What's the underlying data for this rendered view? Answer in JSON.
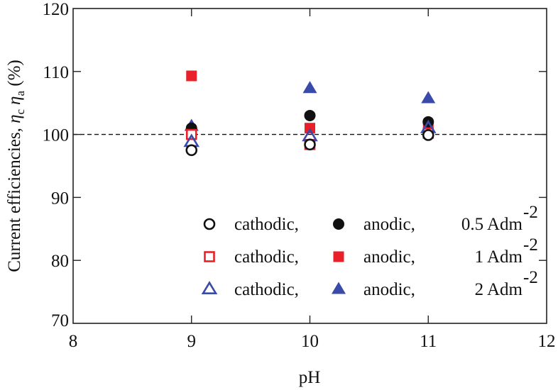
{
  "chart_data": {
    "type": "scatter",
    "title": "",
    "xlabel": "pH",
    "ylabel": "Current efficiencies, ηc ηa (%)",
    "ylabel_parts": {
      "prefix": "Current efficiencies, ",
      "eta": "η",
      "sub_c": "c",
      "sub_a": "a",
      "suffix": " (%)"
    },
    "xlim": [
      8,
      12
    ],
    "ylim": [
      70,
      120
    ],
    "xticks": [
      8,
      9,
      10,
      11,
      12
    ],
    "yticks": [
      70,
      80,
      90,
      100,
      110,
      120
    ],
    "reference_line": {
      "y": 100,
      "style": "dashed"
    },
    "grid": false,
    "legend_position": "bottom-right",
    "series": [
      {
        "name": "cathodic, 0.5 Adm-2",
        "marker": "circle",
        "filled": false,
        "color": "#111111",
        "x": [
          9,
          10,
          11
        ],
        "y": [
          97.5,
          98.4,
          99.9
        ]
      },
      {
        "name": "anodic, 0.5 Adm-2",
        "marker": "circle",
        "filled": true,
        "color": "#111111",
        "x": [
          9,
          10,
          11
        ],
        "y": [
          101.0,
          103.0,
          102.0
        ]
      },
      {
        "name": "cathodic, 1 Adm-2",
        "marker": "square",
        "filled": false,
        "color": "#e8202a",
        "x": [
          9,
          10,
          11
        ],
        "y": [
          100.0,
          98.4,
          100.2
        ]
      },
      {
        "name": "anodic, 1 Adm-2",
        "marker": "square",
        "filled": true,
        "color": "#e8202a",
        "x": [
          9,
          10,
          11
        ],
        "y": [
          109.3,
          101.0,
          101.2
        ]
      },
      {
        "name": "cathodic, 2 Adm-2",
        "marker": "triangle",
        "filled": false,
        "color": "#3a4aa8",
        "x": [
          9,
          10,
          11
        ],
        "y": [
          98.8,
          99.7,
          101.0
        ]
      },
      {
        "name": "anodic, 2 Adm-2",
        "marker": "triangle",
        "filled": true,
        "color": "#3a4aa8",
        "x": [
          9,
          10,
          11
        ],
        "y": [
          101.3,
          107.3,
          105.7
        ]
      }
    ],
    "legend": [
      {
        "cathodic_label": "cathodic,",
        "anodic_label": "anodic,",
        "density": "0.5 Adm",
        "exponent": "-2",
        "marker": "circle",
        "color": "#111111"
      },
      {
        "cathodic_label": "cathodic,",
        "anodic_label": "anodic,",
        "density": "1 Adm",
        "exponent": "-2",
        "marker": "square",
        "color": "#e8202a"
      },
      {
        "cathodic_label": "cathodic,",
        "anodic_label": "anodic,",
        "density": "2 Adm",
        "exponent": "-2",
        "marker": "triangle",
        "color": "#3a4aa8"
      }
    ]
  }
}
